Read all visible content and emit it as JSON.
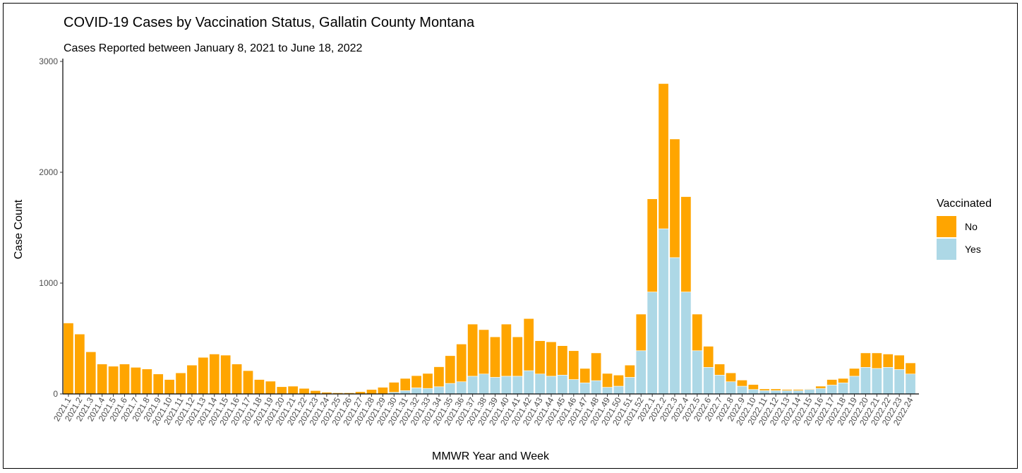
{
  "chart_data": {
    "type": "bar",
    "stacked": true,
    "title": "COVID-19 Cases by Vaccination Status, Gallatin County Montana",
    "subtitle": "Cases Reported between January 8, 2021 to June 18, 2022",
    "xlabel": "MMWR Year and Week",
    "ylabel": "Case Count",
    "ylim": [
      0,
      3000
    ],
    "yticks": [
      "0",
      "1000",
      "2000",
      "3000"
    ],
    "grid": false,
    "legend": {
      "title": "Vaccinated",
      "position": "right"
    },
    "categories": [
      "2021.1",
      "2021.2",
      "2021.3",
      "2021.4",
      "2021.5",
      "2021.6",
      "2021.7",
      "2021.8",
      "2021.9",
      "2021.10",
      "2021.11",
      "2021.12",
      "2021.13",
      "2021.14",
      "2021.15",
      "2021.16",
      "2021.17",
      "2021.18",
      "2021.19",
      "2021.20",
      "2021.21",
      "2021.22",
      "2021.23",
      "2021.24",
      "2021.25",
      "2021.26",
      "2021.27",
      "2021.28",
      "2021.29",
      "2021.30",
      "2021.31",
      "2021.32",
      "2021.33",
      "2021.34",
      "2021.35",
      "2021.36",
      "2021.37",
      "2021.38",
      "2021.39",
      "2021.40",
      "2021.41",
      "2021.42",
      "2021.43",
      "2021.44",
      "2021.45",
      "2021.46",
      "2021.47",
      "2021.48",
      "2021.49",
      "2021.50",
      "2021.51",
      "2021.52",
      "2022.1",
      "2022.2",
      "2022.3",
      "2022.4",
      "2022.5",
      "2022.6",
      "2022.7",
      "2022.8",
      "2022.9",
      "2022.10",
      "2022.11",
      "2022.12",
      "2022.13",
      "2022.14",
      "2022.15",
      "2022.16",
      "2022.17",
      "2022.18",
      "2022.19",
      "2022.20",
      "2022.21",
      "2022.22",
      "2022.23",
      "2022.24"
    ],
    "series": [
      {
        "name": "Yes",
        "color": "#add8e6",
        "values": [
          0,
          0,
          0,
          0,
          0,
          0,
          0,
          0,
          0,
          0,
          0,
          0,
          0,
          0,
          0,
          0,
          0,
          0,
          0,
          0,
          0,
          0,
          0,
          0,
          0,
          0,
          0,
          0,
          0,
          15,
          30,
          55,
          50,
          65,
          95,
          110,
          160,
          180,
          150,
          160,
          160,
          210,
          180,
          160,
          170,
          130,
          100,
          120,
          60,
          70,
          150,
          390,
          920,
          1490,
          1230,
          920,
          390,
          240,
          170,
          110,
          70,
          40,
          30,
          30,
          30,
          30,
          40,
          50,
          80,
          100,
          160,
          240,
          230,
          240,
          220,
          180
        ]
      },
      {
        "name": "No",
        "color": "#ffa500",
        "values": [
          640,
          540,
          380,
          270,
          250,
          270,
          240,
          225,
          180,
          130,
          190,
          260,
          330,
          360,
          350,
          270,
          210,
          130,
          115,
          65,
          70,
          50,
          30,
          15,
          10,
          10,
          20,
          40,
          60,
          90,
          110,
          110,
          135,
          180,
          250,
          340,
          470,
          400,
          365,
          470,
          355,
          470,
          300,
          310,
          265,
          260,
          130,
          250,
          125,
          100,
          110,
          330,
          840,
          1310,
          1070,
          860,
          330,
          190,
          100,
          80,
          55,
          45,
          15,
          15,
          10,
          10,
          5,
          20,
          50,
          40,
          70,
          130,
          140,
          120,
          130,
          100
        ]
      }
    ]
  }
}
